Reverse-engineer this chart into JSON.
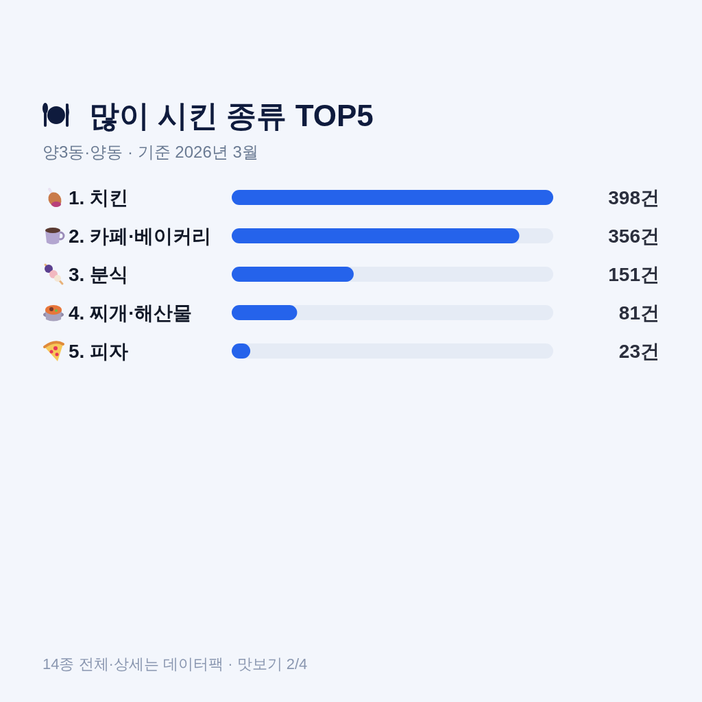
{
  "chart_data": {
    "type": "bar",
    "orientation": "horizontal",
    "title": "많이 시킨 종류 TOP5",
    "subtitle": "양3동·양동 · 기준 2026년 3월",
    "categories": [
      "1. 치킨",
      "2. 카페·베이커리",
      "3. 분식",
      "4. 찌개·해산물",
      "5. 피자"
    ],
    "values": [
      398,
      356,
      151,
      81,
      23
    ],
    "value_labels": [
      "398건",
      "356건",
      "151건",
      "81건",
      "23건"
    ],
    "color": "#2563eb",
    "xlim": [
      0,
      398
    ],
    "tick_labels": "y",
    "annotations": [
      "14종 전체·상세는 데이터팩 · 맛보기 2/4"
    ]
  }
}
